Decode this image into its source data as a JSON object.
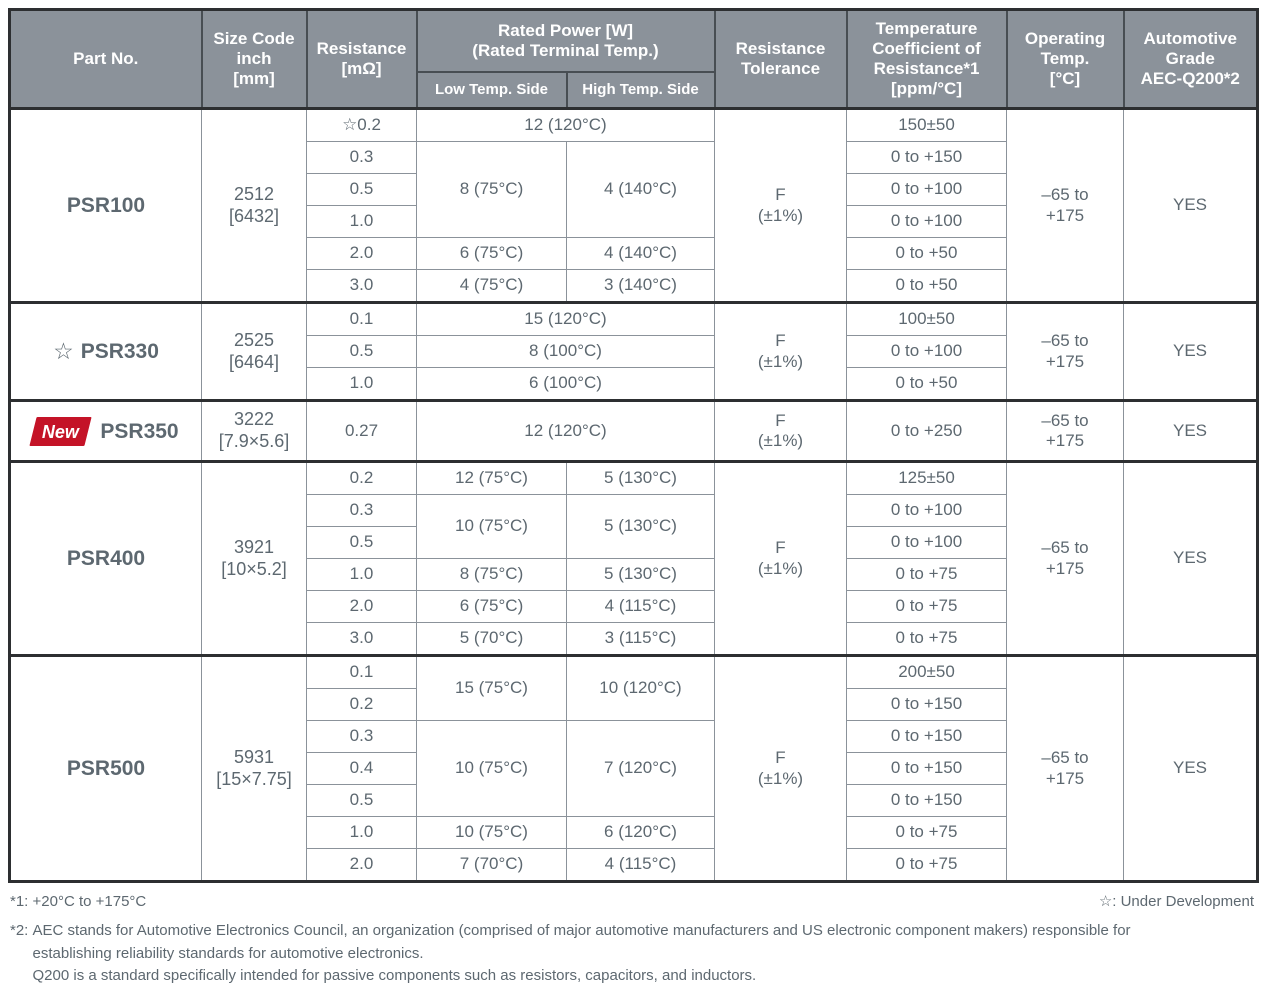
{
  "header": {
    "part_no": "Part No.",
    "size_code": "Size Code\ninch\n[mm]",
    "resistance": "Resistance\n[mΩ]",
    "rated_power": "Rated Power [W]\n(Rated Terminal Temp.)",
    "low_temp_side": "Low Temp. Side",
    "high_temp_side": "High Temp. Side",
    "tolerance": "Resistance\nTolerance",
    "tcr": "Temperature\nCoefficient of\nResistance*1\n[ppm/°C]",
    "operating_temp": "Operating\nTemp.\n[°C]",
    "automotive_grade": "Automotive\nGrade\nAEC-Q200*2"
  },
  "markers": {
    "star_glyph": "☆",
    "new_label": "New"
  },
  "colors": {
    "header_bg": "#8b929a",
    "accent_red": "#c41327",
    "body_text": "#5d6870",
    "border_dark": "#2d2f31",
    "border_light": "#8b929a"
  },
  "sections": [
    {
      "part": "PSR100",
      "marker": null,
      "size_code": "2512\n[6432]",
      "tolerance": "F\n(±1%)",
      "operating_temp": "–65 to\n+175",
      "automotive_grade": "YES",
      "rows": [
        {
          "resistance": "☆0.2",
          "power": [
            {
              "text": "12 (120°C)",
              "colspan": 2
            }
          ],
          "tcr": "150±50"
        },
        {
          "resistance": "0.3",
          "power": [
            {
              "text": "8 (75°C)",
              "rowspan": 3
            },
            {
              "text": "4 (140°C)",
              "rowspan": 3
            }
          ],
          "tcr": "0 to +150"
        },
        {
          "resistance": "0.5",
          "power": [],
          "tcr": "0 to +100"
        },
        {
          "resistance": "1.0",
          "power": [],
          "tcr": "0 to +100"
        },
        {
          "resistance": "2.0",
          "power": [
            {
              "text": "6 (75°C)"
            },
            {
              "text": "4 (140°C)"
            }
          ],
          "tcr": "0 to +50"
        },
        {
          "resistance": "3.0",
          "power": [
            {
              "text": "4 (75°C)"
            },
            {
              "text": "3 (140°C)"
            }
          ],
          "tcr": "0 to +50"
        }
      ]
    },
    {
      "part": "PSR330",
      "marker": "star",
      "size_code": "2525\n[6464]",
      "tolerance": "F\n(±1%)",
      "operating_temp": "–65 to\n+175",
      "automotive_grade": "YES",
      "rows": [
        {
          "resistance": "0.1",
          "power": [
            {
              "text": "15 (120°C)",
              "colspan": 2
            }
          ],
          "tcr": "100±50"
        },
        {
          "resistance": "0.5",
          "power": [
            {
              "text": "8 (100°C)",
              "colspan": 2
            }
          ],
          "tcr": "0 to +100"
        },
        {
          "resistance": "1.0",
          "power": [
            {
              "text": "6 (100°C)",
              "colspan": 2
            }
          ],
          "tcr": "0 to +50"
        }
      ]
    },
    {
      "part": "PSR350",
      "marker": "new",
      "size_code": "3222\n[7.9×5.6]",
      "tolerance": "F\n(±1%)",
      "operating_temp": "–65 to\n+175",
      "automotive_grade": "YES",
      "rows": [
        {
          "resistance": "0.27",
          "power": [
            {
              "text": "12 (120°C)",
              "colspan": 2
            }
          ],
          "tcr": "0 to +250"
        }
      ]
    },
    {
      "part": "PSR400",
      "marker": null,
      "size_code": "3921\n[10×5.2]",
      "tolerance": "F\n(±1%)",
      "operating_temp": "–65 to\n+175",
      "automotive_grade": "YES",
      "rows": [
        {
          "resistance": "0.2",
          "power": [
            {
              "text": "12 (75°C)"
            },
            {
              "text": "5 (130°C)"
            }
          ],
          "tcr": "125±50"
        },
        {
          "resistance": "0.3",
          "power": [
            {
              "text": "10 (75°C)",
              "rowspan": 2
            },
            {
              "text": "5 (130°C)",
              "rowspan": 2
            }
          ],
          "tcr": "0 to +100"
        },
        {
          "resistance": "0.5",
          "power": [],
          "tcr": "0 to +100"
        },
        {
          "resistance": "1.0",
          "power": [
            {
              "text": "8 (75°C)"
            },
            {
              "text": "5 (130°C)"
            }
          ],
          "tcr": "0 to +75"
        },
        {
          "resistance": "2.0",
          "power": [
            {
              "text": "6 (75°C)"
            },
            {
              "text": "4 (115°C)"
            }
          ],
          "tcr": "0 to +75"
        },
        {
          "resistance": "3.0",
          "power": [
            {
              "text": "5 (70°C)"
            },
            {
              "text": "3 (115°C)"
            }
          ],
          "tcr": "0 to +75"
        }
      ]
    },
    {
      "part": "PSR500",
      "marker": null,
      "size_code": "5931\n[15×7.75]",
      "tolerance": "F\n(±1%)",
      "operating_temp": "–65 to\n+175",
      "automotive_grade": "YES",
      "rows": [
        {
          "resistance": "0.1",
          "power": [
            {
              "text": "15 (75°C)",
              "rowspan": 2
            },
            {
              "text": "10 (120°C)",
              "rowspan": 2
            }
          ],
          "tcr": "200±50"
        },
        {
          "resistance": "0.2",
          "power": [],
          "tcr": "0 to +150"
        },
        {
          "resistance": "0.3",
          "power": [
            {
              "text": "10 (75°C)",
              "rowspan": 3
            },
            {
              "text": "7 (120°C)",
              "rowspan": 3
            }
          ],
          "tcr": "0 to +150"
        },
        {
          "resistance": "0.4",
          "power": [],
          "tcr": "0 to +150"
        },
        {
          "resistance": "0.5",
          "power": [],
          "tcr": "0 to +150"
        },
        {
          "resistance": "1.0",
          "power": [
            {
              "text": "10 (75°C)"
            },
            {
              "text": "6 (120°C)"
            }
          ],
          "tcr": "0 to +75"
        },
        {
          "resistance": "2.0",
          "power": [
            {
              "text": "7 (70°C)"
            },
            {
              "text": "4 (115°C)"
            }
          ],
          "tcr": "0 to +75"
        }
      ]
    }
  ],
  "footnotes": {
    "note1": "*1: +20°C to +175°C",
    "star_note": "☆: Under Development",
    "note2_marker": "*2: ",
    "note2_p1": "AEC stands for Automotive Electronics Council, an organization (comprised of major automotive manufacturers and US electronic component makers) responsible for establishing reliability standards for automotive electronics.",
    "note2_p2": "Q200 is a standard specifically intended for passive components such as resistors, capacitors, and inductors."
  }
}
